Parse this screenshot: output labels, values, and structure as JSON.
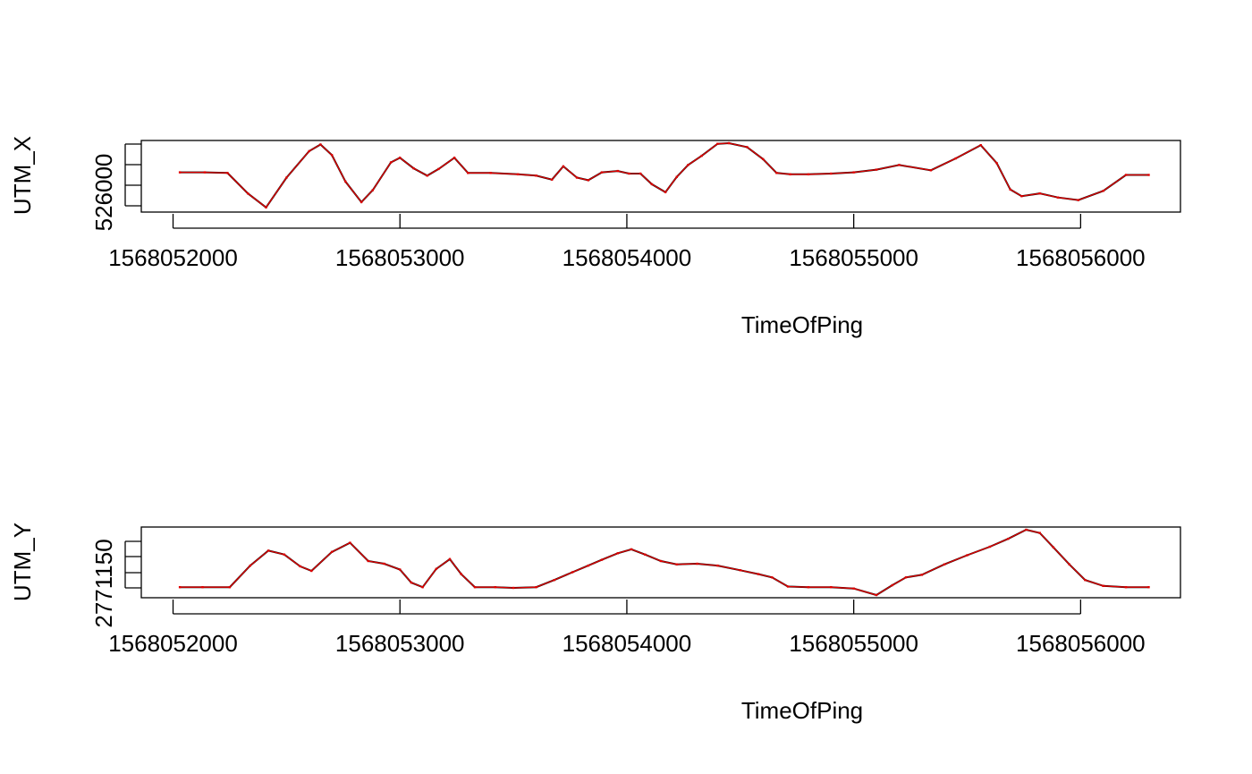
{
  "chart_data": [
    {
      "type": "line",
      "ylabel": "UTM_X",
      "xlabel": "TimeOfPing",
      "x_ticks": [
        1568052000,
        1568053000,
        1568054000,
        1568055000,
        1568056000
      ],
      "x_tick_labels": [
        "1568052000",
        "1568053000",
        "1568054000",
        "1568055000",
        "1568056000"
      ],
      "xlim": [
        1568051860,
        1568056440
      ],
      "y_tick_label": "526000",
      "series": [
        {
          "color": "#000000",
          "style": "line"
        },
        {
          "color": "#e00000",
          "style": "line with points"
        }
      ],
      "x": [
        1568052030,
        1568052140,
        1568052240,
        1568052330,
        1568052410,
        1568052500,
        1568052600,
        1568052650,
        1568052700,
        1568052760,
        1568052830,
        1568052880,
        1568052960,
        1568053000,
        1568053060,
        1568053120,
        1568053170,
        1568053240,
        1568053300,
        1568053400,
        1568053520,
        1568053600,
        1568053670,
        1568053720,
        1568053780,
        1568053830,
        1568053890,
        1568053960,
        1568054010,
        1568054060,
        1568054110,
        1568054170,
        1568054220,
        1568054270,
        1568054330,
        1568054400,
        1568054450,
        1568054530,
        1568054600,
        1568054660,
        1568054720,
        1568054800,
        1568054900,
        1568055000,
        1568055100,
        1568055200,
        1568055340,
        1568055450,
        1568055560,
        1568055630,
        1568055690,
        1568055740,
        1568055820,
        1568055900,
        1568055990,
        1568056100,
        1568056200,
        1568056300
      ],
      "y": [
        0.56,
        0.56,
        0.55,
        0.24,
        0.03,
        0.48,
        0.88,
        0.98,
        0.82,
        0.42,
        0.11,
        0.29,
        0.71,
        0.78,
        0.62,
        0.51,
        0.61,
        0.78,
        0.55,
        0.55,
        0.53,
        0.51,
        0.45,
        0.65,
        0.48,
        0.44,
        0.56,
        0.58,
        0.54,
        0.54,
        0.38,
        0.26,
        0.49,
        0.67,
        0.81,
        0.99,
        1.0,
        0.94,
        0.76,
        0.55,
        0.53,
        0.53,
        0.54,
        0.56,
        0.6,
        0.67,
        0.59,
        0.77,
        0.97,
        0.7,
        0.3,
        0.2,
        0.24,
        0.18,
        0.14,
        0.28,
        0.52,
        0.52
      ]
    },
    {
      "type": "line",
      "ylabel": "UTM_Y",
      "xlabel": "TimeOfPing",
      "x_ticks": [
        1568052000,
        1568053000,
        1568054000,
        1568055000,
        1568056000
      ],
      "x_tick_labels": [
        "1568052000",
        "1568053000",
        "1568054000",
        "1568055000",
        "1568056000"
      ],
      "xlim": [
        1568051860,
        1568056440
      ],
      "y_tick_label": "2771150",
      "series": [
        {
          "color": "#000000",
          "style": "line"
        },
        {
          "color": "#e00000",
          "style": "line with points"
        }
      ],
      "x": [
        1568052030,
        1568052130,
        1568052250,
        1568052340,
        1568052420,
        1568052490,
        1568052560,
        1568052610,
        1568052700,
        1568052780,
        1568052860,
        1568052930,
        1568053000,
        1568053050,
        1568053100,
        1568053160,
        1568053220,
        1568053270,
        1568053330,
        1568053420,
        1568053500,
        1568053600,
        1568053680,
        1568053760,
        1568053830,
        1568053890,
        1568053960,
        1568054020,
        1568054080,
        1568054150,
        1568054220,
        1568054310,
        1568054400,
        1568054500,
        1568054580,
        1568054640,
        1568054710,
        1568054800,
        1568054900,
        1568055000,
        1568055100,
        1568055170,
        1568055230,
        1568055300,
        1568055400,
        1568055500,
        1568055600,
        1568055680,
        1568055760,
        1568055820,
        1568055880,
        1568055950,
        1568056020,
        1568056100,
        1568056200,
        1568056300
      ],
      "y": [
        0.12,
        0.12,
        0.12,
        0.45,
        0.68,
        0.62,
        0.44,
        0.37,
        0.66,
        0.8,
        0.52,
        0.48,
        0.39,
        0.19,
        0.12,
        0.4,
        0.55,
        0.32,
        0.12,
        0.12,
        0.11,
        0.12,
        0.23,
        0.35,
        0.45,
        0.54,
        0.64,
        0.7,
        0.62,
        0.52,
        0.47,
        0.48,
        0.45,
        0.38,
        0.32,
        0.27,
        0.13,
        0.12,
        0.12,
        0.1,
        0.0,
        0.15,
        0.27,
        0.31,
        0.47,
        0.61,
        0.74,
        0.86,
        1.0,
        0.95,
        0.73,
        0.47,
        0.23,
        0.14,
        0.12,
        0.12
      ]
    }
  ]
}
